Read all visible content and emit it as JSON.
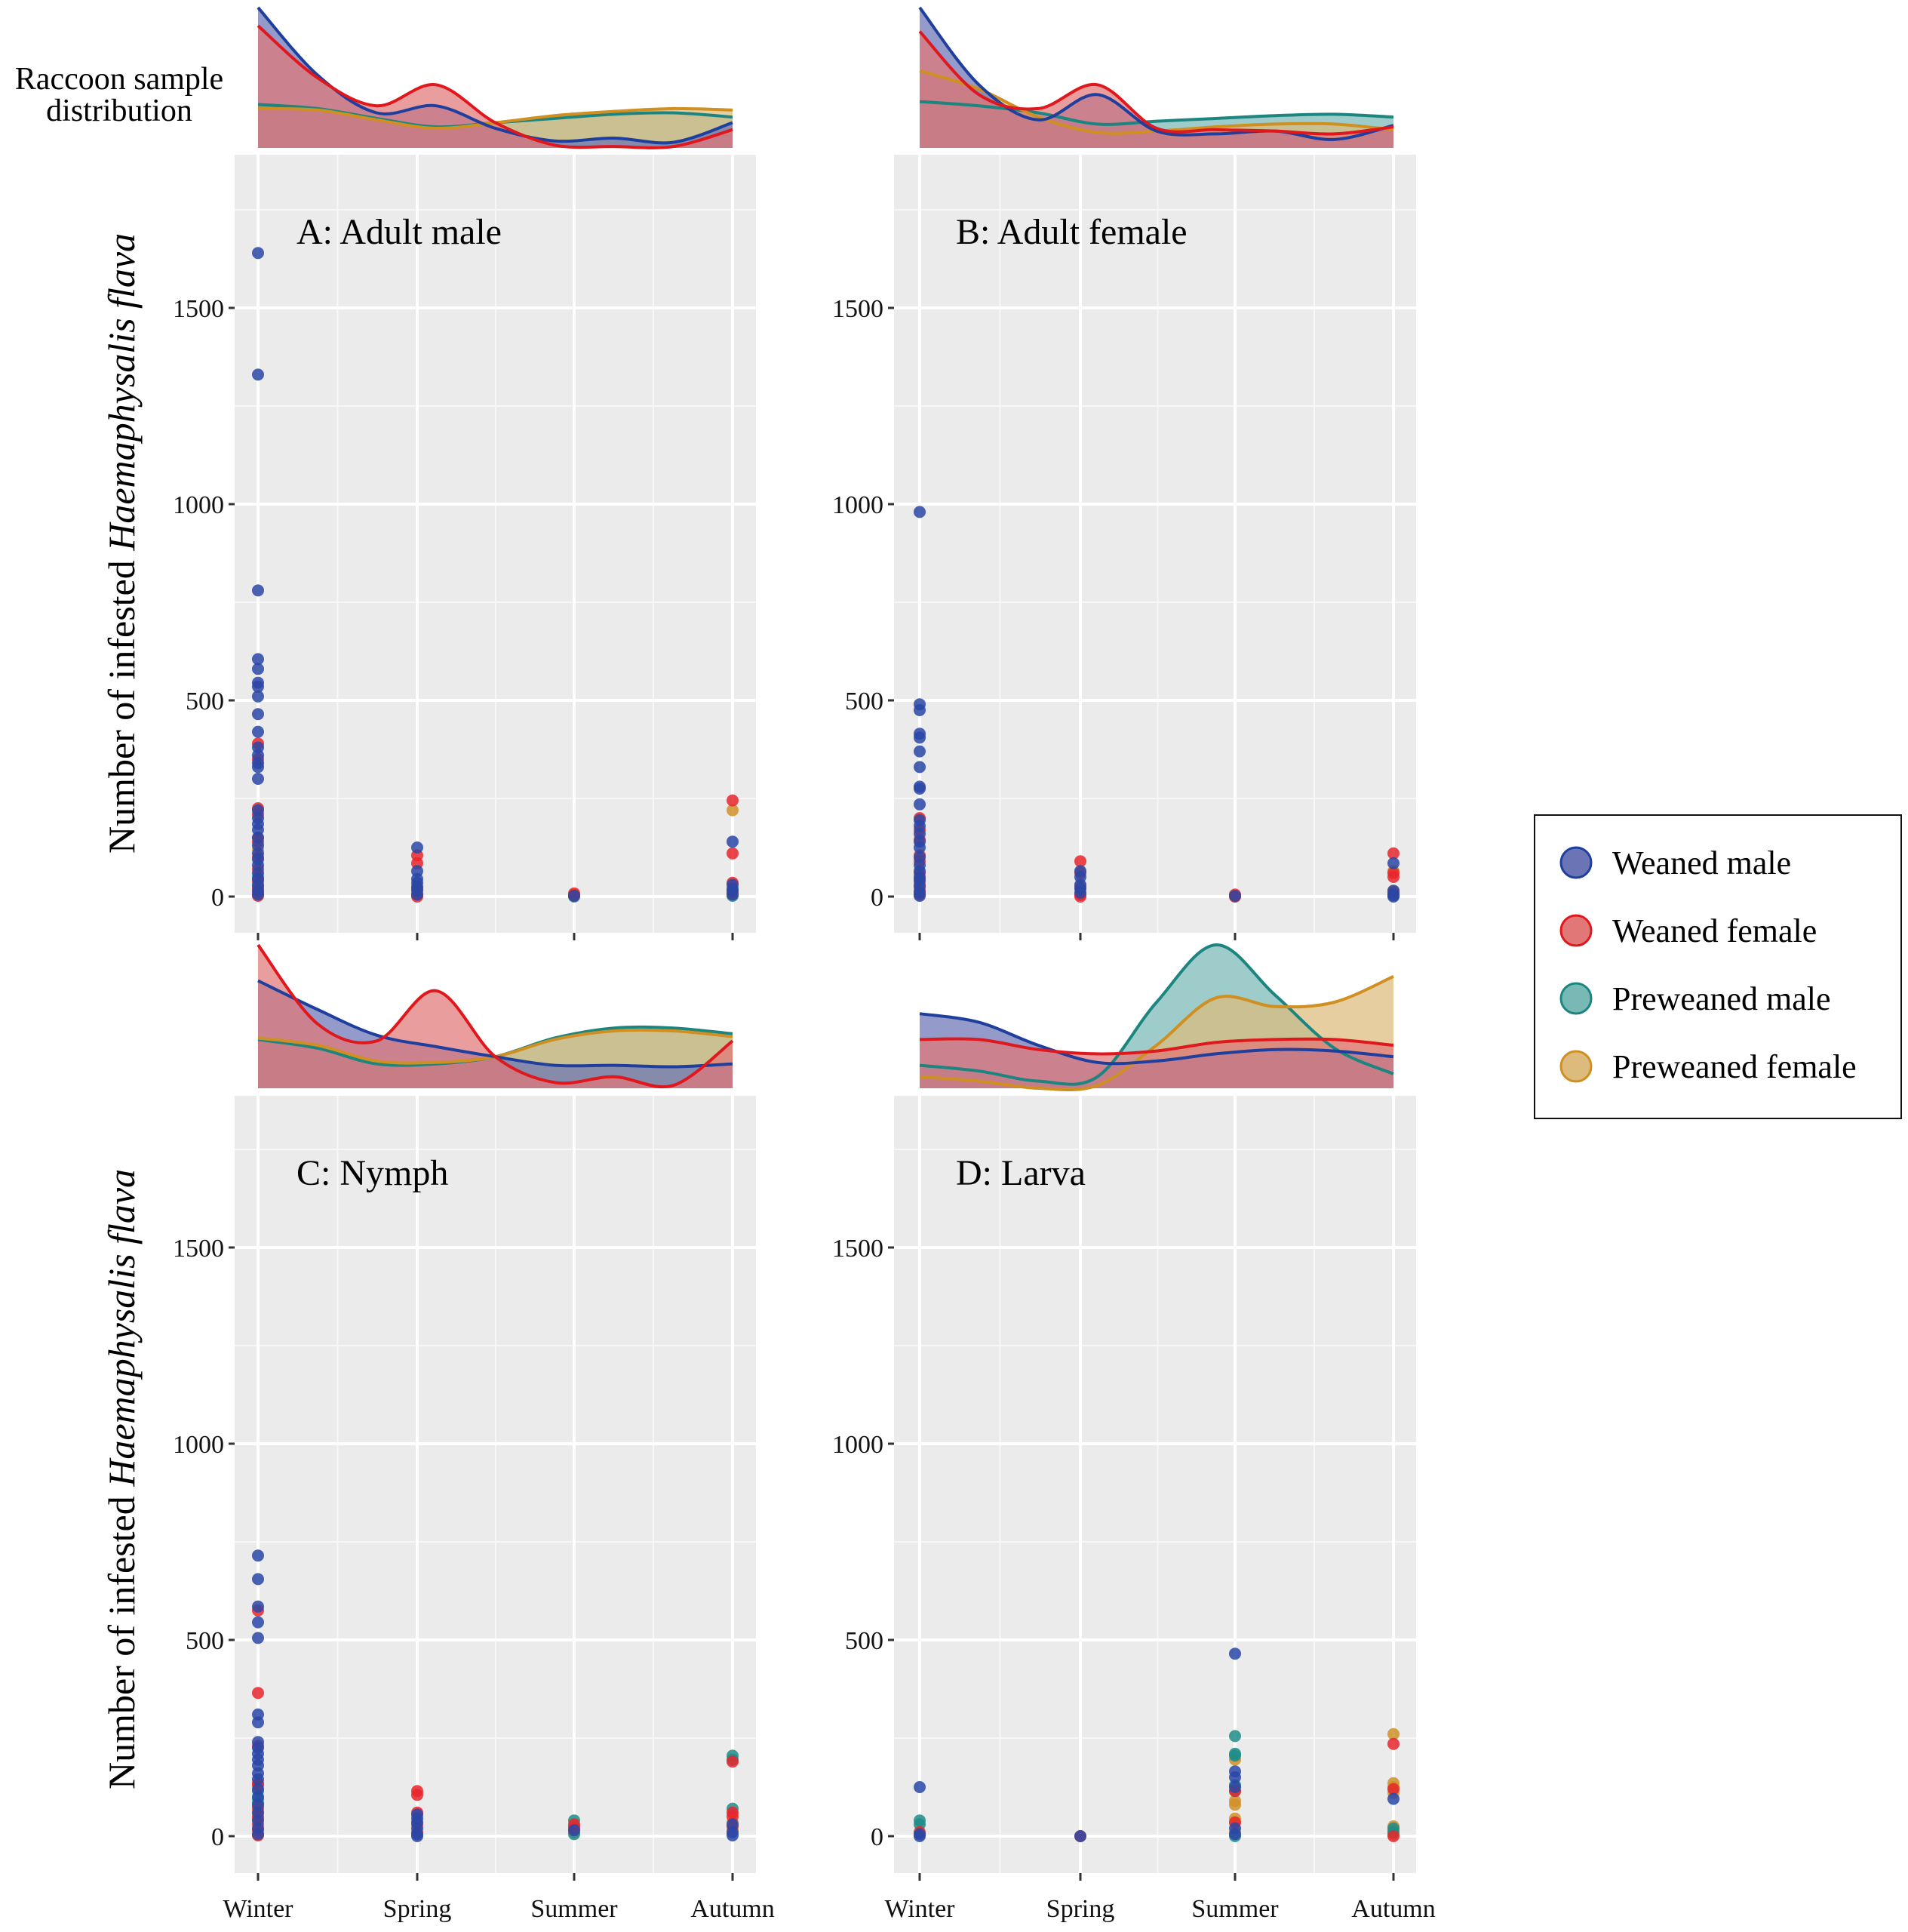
{
  "figure": {
    "density_title_line1": "Raccoon sample",
    "density_title_line2": "distribution",
    "ylabel_plain": "Number of infested ",
    "ylabel_italic": "Haemaphysalis flava"
  },
  "legend": {
    "items": [
      {
        "label": "Weaned male",
        "fill": "#6b74b5",
        "stroke": "#1f3f9e"
      },
      {
        "label": "Weaned female",
        "fill": "#e27777",
        "stroke": "#e0171c"
      },
      {
        "label": "Preweaned male",
        "fill": "#79b9b5",
        "stroke": "#1c8580"
      },
      {
        "label": "Preweaned female",
        "fill": "#dcbb7c",
        "stroke": "#cf8f21"
      }
    ]
  },
  "chart_data": {
    "type": "scatter",
    "categories": [
      "Winter",
      "Spring",
      "Summer",
      "Autumn"
    ],
    "ylim": [
      -150,
      1900
    ],
    "yticks": [
      0,
      500,
      1000,
      1500
    ],
    "grid": true,
    "legend_position": "right",
    "series_names": [
      "Weaned male",
      "Weaned female",
      "Preweaned male",
      "Preweaned female"
    ],
    "series_colors": [
      "#2a47a6",
      "#e8262b",
      "#1f8c88",
      "#d0912a"
    ],
    "panels": [
      {
        "title": "A: Adult male",
        "points": {
          "Weaned male": {
            "Winter": [
              1640,
              1330,
              780,
              605,
              580,
              545,
              535,
              510,
              465,
              420,
              380,
              360,
              340,
              330,
              300,
              220,
              200,
              185,
              170,
              150,
              130,
              110,
              95,
              80,
              60,
              45,
              30,
              15,
              5
            ],
            "Spring": [
              125,
              65,
              45,
              35,
              25,
              15,
              5
            ],
            "Summer": [
              2
            ],
            "Autumn": [
              140,
              30,
              20,
              15,
              5
            ]
          },
          "Weaned female": {
            "Winter": [
              390,
              350,
              225,
              210,
              150,
              140,
              100,
              70,
              40,
              20,
              10,
              2
            ],
            "Spring": [
              105,
              85,
              20,
              5,
              0
            ],
            "Summer": [
              8,
              3
            ],
            "Autumn": [
              245,
              110,
              35,
              10
            ]
          },
          "Preweaned male": {
            "Winter": [
              50,
              25
            ],
            "Spring": [],
            "Summer": [
              0
            ],
            "Autumn": [
              2
            ]
          },
          "Preweaned female": {
            "Winter": [
              120
            ],
            "Spring": [],
            "Summer": [
              4
            ],
            "Autumn": [
              220,
              5
            ]
          }
        },
        "density": {
          "Weaned male": [
            1.0,
            0.52,
            0.25,
            0.3,
            0.14,
            0.05,
            0.07,
            0.04,
            0.18
          ],
          "Weaned female": [
            0.87,
            0.5,
            0.3,
            0.45,
            0.18,
            0.02,
            0.01,
            0.01,
            0.13
          ],
          "Preweaned male": [
            0.31,
            0.28,
            0.21,
            0.15,
            0.18,
            0.21,
            0.24,
            0.25,
            0.22
          ],
          "Preweaned female": [
            0.28,
            0.27,
            0.2,
            0.14,
            0.18,
            0.23,
            0.26,
            0.28,
            0.27
          ]
        }
      },
      {
        "title": "B: Adult female",
        "points": {
          "Weaned male": {
            "Winter": [
              980,
              490,
              475,
              415,
              405,
              370,
              330,
              280,
              275,
              235,
              195,
              180,
              160,
              140,
              125,
              100,
              80,
              65,
              50,
              40,
              25,
              10,
              2
            ],
            "Spring": [
              65,
              50,
              30,
              20,
              10
            ],
            "Summer": [
              2
            ],
            "Autumn": [
              85,
              15,
              5,
              0
            ]
          },
          "Weaned female": {
            "Winter": [
              200,
              170,
              145,
              105,
              90,
              60,
              45,
              30,
              15,
              5
            ],
            "Spring": [
              90,
              60,
              25,
              5,
              0
            ],
            "Summer": [
              5,
              0
            ],
            "Autumn": [
              110,
              60,
              50,
              10
            ]
          },
          "Preweaned male": {
            "Winter": [],
            "Spring": [],
            "Summer": [],
            "Autumn": [
              3
            ]
          },
          "Preweaned female": {
            "Winter": [],
            "Spring": [],
            "Summer": [
              0
            ],
            "Autumn": [
              65,
              15
            ]
          }
        },
        "density": {
          "Weaned male": [
            1.0,
            0.45,
            0.2,
            0.38,
            0.12,
            0.1,
            0.12,
            0.06,
            0.16
          ],
          "Weaned female": [
            0.83,
            0.38,
            0.28,
            0.45,
            0.14,
            0.13,
            0.12,
            0.1,
            0.15
          ],
          "Preweaned male": [
            0.33,
            0.3,
            0.25,
            0.17,
            0.19,
            0.21,
            0.23,
            0.24,
            0.22
          ],
          "Preweaned female": [
            0.55,
            0.42,
            0.22,
            0.11,
            0.12,
            0.15,
            0.17,
            0.17,
            0.13
          ]
        }
      },
      {
        "title": "C: Nymph",
        "points": {
          "Weaned male": {
            "Winter": [
              715,
              655,
              585,
              545,
              505,
              310,
              290,
              240,
              225,
              210,
              195,
              180,
              160,
              145,
              120,
              100,
              80,
              60,
              40,
              20,
              5
            ],
            "Spring": [
              55,
              45,
              35,
              20,
              5,
              0
            ],
            "Summer": [
              15
            ],
            "Autumn": [
              30,
              10,
              2
            ]
          },
          "Weaned female": {
            "Winter": [
              575,
              365,
              230,
              135,
              130,
              70,
              50,
              30,
              15,
              2
            ],
            "Spring": [
              115,
              105,
              60,
              30,
              10
            ],
            "Summer": [
              30,
              20
            ],
            "Autumn": [
              190,
              60,
              50,
              25
            ]
          },
          "Preweaned male": {
            "Winter": [
              115,
              95,
              85
            ],
            "Spring": [],
            "Summer": [
              40,
              25,
              5
            ],
            "Autumn": [
              205,
              195,
              70
            ]
          },
          "Preweaned female": {
            "Winter": [
              75,
              60,
              45
            ],
            "Spring": [],
            "Summer": [
              15,
              10
            ],
            "Autumn": [
              35,
              15
            ]
          }
        },
        "density": {
          "Weaned male": [
            0.75,
            0.55,
            0.37,
            0.29,
            0.22,
            0.16,
            0.16,
            0.15,
            0.17
          ],
          "Weaned female": [
            1.0,
            0.45,
            0.33,
            0.68,
            0.22,
            0.04,
            0.08,
            0.02,
            0.33
          ],
          "Preweaned male": [
            0.34,
            0.28,
            0.17,
            0.17,
            0.22,
            0.35,
            0.42,
            0.42,
            0.38
          ],
          "Preweaned female": [
            0.35,
            0.3,
            0.19,
            0.18,
            0.22,
            0.34,
            0.4,
            0.4,
            0.36
          ]
        }
      },
      {
        "title": "D: Larva",
        "points": {
          "Weaned male": {
            "Winter": [
              125,
              5,
              0
            ],
            "Spring": [
              0
            ],
            "Summer": [
              465,
              165,
              150,
              125,
              20,
              5
            ],
            "Autumn": [
              95
            ]
          },
          "Weaned female": {
            "Winter": [
              10
            ],
            "Spring": [
              0
            ],
            "Summer": [
              115,
              35
            ],
            "Autumn": [
              235,
              120,
              0
            ]
          },
          "Preweaned male": {
            "Winter": [
              40,
              30
            ],
            "Spring": [],
            "Summer": [
              255,
              210,
              205,
              130,
              115,
              0
            ],
            "Autumn": [
              20,
              10
            ]
          },
          "Preweaned female": {
            "Winter": [],
            "Spring": [],
            "Summer": [
              195,
              90,
              80,
              45,
              35,
              10
            ],
            "Autumn": [
              260,
              135,
              125,
              110,
              25,
              15,
              5
            ]
          }
        },
        "density": {
          "Weaned male": [
            0.52,
            0.46,
            0.3,
            0.18,
            0.19,
            0.24,
            0.27,
            0.26,
            0.22
          ],
          "Weaned female": [
            0.34,
            0.34,
            0.27,
            0.24,
            0.26,
            0.32,
            0.34,
            0.34,
            0.3
          ],
          "Preweaned male": [
            0.16,
            0.12,
            0.05,
            0.08,
            0.6,
            1.0,
            0.65,
            0.28,
            0.1
          ],
          "Preweaned female": [
            0.08,
            0.05,
            0.0,
            0.02,
            0.3,
            0.63,
            0.57,
            0.6,
            0.78
          ]
        }
      }
    ]
  }
}
